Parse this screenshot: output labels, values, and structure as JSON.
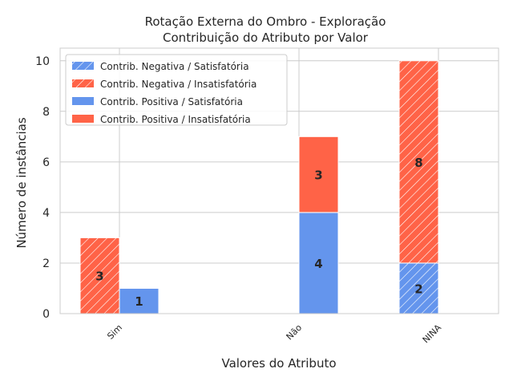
{
  "chart_data": {
    "type": "bar",
    "title": "Rotação Externa do Ombro - Exploração",
    "subtitle": "Contribuição do Atributo por Valor",
    "xlabel": "Valores do Atributo",
    "ylabel": "Número de instâncias",
    "categories": [
      "Sim",
      "Não",
      "NINA"
    ],
    "ylim": [
      0,
      10.5
    ],
    "yticks": [
      0,
      2,
      4,
      6,
      8,
      10
    ],
    "grid": true,
    "legend_position": "top-left",
    "colors": {
      "satisfatoria": "#6495ed",
      "insatisfatoria": "#ff6347"
    },
    "series": [
      {
        "name": "Contrib. Negativa / Satisfatória",
        "group": "negativa",
        "outcome": "satisfatoria",
        "hatch": true,
        "values": [
          0,
          0,
          2
        ]
      },
      {
        "name": "Contrib. Negativa / Insatisfatória",
        "group": "negativa",
        "outcome": "insatisfatoria",
        "hatch": true,
        "values": [
          3,
          0,
          8
        ]
      },
      {
        "name": "Contrib. Positiva / Satisfatória",
        "group": "positiva",
        "outcome": "satisfatoria",
        "hatch": false,
        "values": [
          1,
          4,
          0
        ]
      },
      {
        "name": "Contrib. Positiva / Insatisfatória",
        "group": "positiva",
        "outcome": "insatisfatoria",
        "hatch": false,
        "values": [
          0,
          3,
          0
        ]
      }
    ]
  }
}
